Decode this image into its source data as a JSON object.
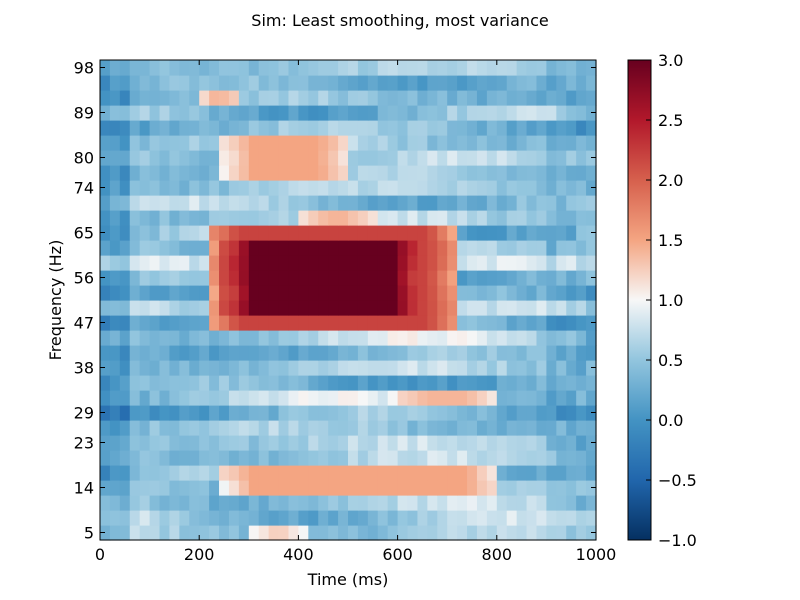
{
  "chart_data": {
    "type": "heatmap",
    "title": "Sim: Least smoothing, most variance",
    "xlabel": "Time (ms)",
    "ylabel": "Frequency (Hz)",
    "xlim": [
      0,
      1000
    ],
    "x_ticks": [
      0,
      200,
      400,
      600,
      800,
      1000
    ],
    "y_tick_labels": [
      "5",
      "14",
      "23",
      "29",
      "38",
      "47",
      "56",
      "65",
      "74",
      "80",
      "89",
      "98"
    ],
    "colorbar": {
      "colormap": "RdBu_r",
      "vmin": -1.0,
      "vmax": 3.0,
      "ticks": [
        "−1.0",
        "−0.5",
        "0.0",
        "0.5",
        "1.0",
        "1.5",
        "2.0",
        "2.5",
        "3.0"
      ]
    },
    "grid": false,
    "n_rows": 32,
    "n_cols": 50,
    "features": [
      {
        "t0": 250,
        "t1": 650,
        "row0": 15,
        "row1": 19,
        "value": 3.0
      },
      {
        "t0": 220,
        "t1": 720,
        "row0": 14,
        "row1": 20,
        "value": 2.2
      },
      {
        "t0": 250,
        "t1": 500,
        "row0": 24,
        "row1": 26,
        "value": 1.5
      },
      {
        "t0": 200,
        "t1": 280,
        "row0": 29,
        "row1": 29,
        "value": 1.6
      },
      {
        "t0": 400,
        "t1": 550,
        "row0": 21,
        "row1": 21,
        "value": 1.4
      },
      {
        "t0": 250,
        "t1": 800,
        "row0": 3,
        "row1": 4,
        "value": 1.5
      },
      {
        "t0": 300,
        "t1": 420,
        "row0": 0,
        "row1": 0,
        "value": 1.3
      },
      {
        "t0": 600,
        "t1": 800,
        "row0": 9,
        "row1": 9,
        "value": 1.4
      }
    ]
  },
  "colors": {
    "low": "#053061",
    "mid": "#f7f7f7",
    "high": "#67001f"
  }
}
